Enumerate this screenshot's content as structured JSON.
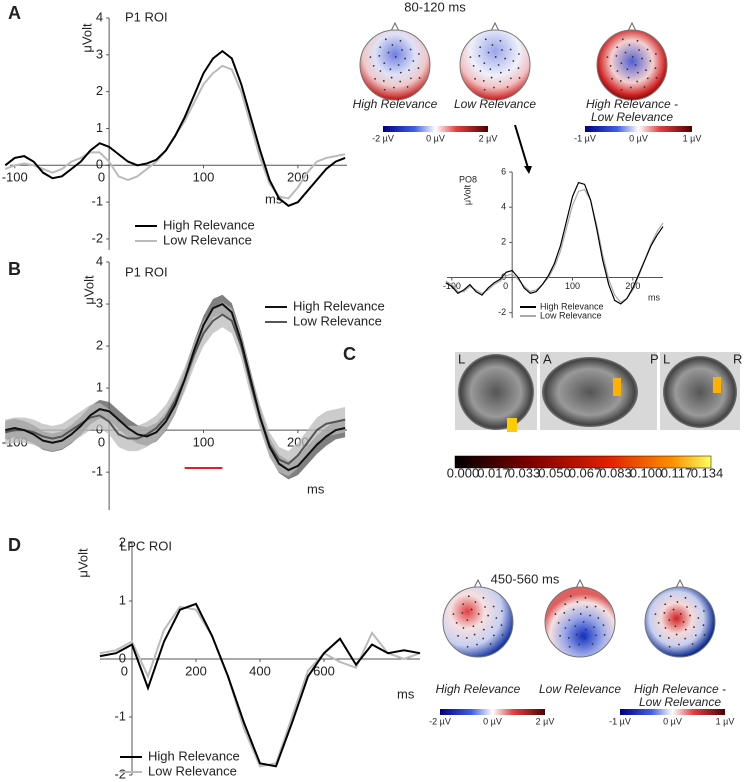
{
  "chart_data": [
    {
      "type": "line",
      "panel": "A",
      "title": "P1 ROI",
      "ylabel": "μVolt",
      "xlabel": "ms",
      "xlim": [
        -105,
        252
      ],
      "ylim": [
        -2.3,
        4
      ],
      "xticks": [
        -100,
        0,
        100,
        200
      ],
      "yticks": [
        -2,
        -1,
        0,
        1,
        2,
        3,
        4
      ],
      "x": [
        -110,
        -100,
        -90,
        -80,
        -70,
        -60,
        -50,
        -40,
        -30,
        -20,
        -10,
        0,
        10,
        20,
        30,
        40,
        50,
        60,
        70,
        80,
        90,
        100,
        110,
        120,
        130,
        140,
        150,
        160,
        170,
        180,
        190,
        200,
        210,
        220,
        230,
        240,
        250
      ],
      "series": [
        {
          "name": "High Relevance",
          "color": "#000000",
          "values": [
            0,
            0.2,
            0.25,
            0.1,
            -0.2,
            -0.35,
            -0.3,
            -0.1,
            0.1,
            0.4,
            0.6,
            0.5,
            0.3,
            0.1,
            0,
            0.05,
            0.15,
            0.4,
            0.8,
            1.3,
            1.9,
            2.5,
            2.9,
            3.1,
            2.9,
            2.2,
            1.3,
            0.4,
            -0.4,
            -0.9,
            -1.1,
            -1,
            -0.7,
            -0.4,
            -0.1,
            0.1,
            0.2
          ]
        },
        {
          "name": "Low Relevance",
          "color": "#bbbbbb",
          "values": [
            -0.1,
            0,
            0.05,
            0,
            -0.1,
            -0.2,
            -0.1,
            0.1,
            0.2,
            0.35,
            0.35,
            0.1,
            -0.3,
            -0.4,
            -0.3,
            -0.1,
            0.1,
            0.4,
            0.8,
            1.2,
            1.7,
            2.2,
            2.5,
            2.7,
            2.6,
            2,
            1.1,
            0.2,
            -0.5,
            -0.85,
            -0.9,
            -0.6,
            -0.2,
            0.1,
            0.2,
            0.25,
            0.3
          ]
        }
      ]
    },
    {
      "type": "band",
      "panel": "B",
      "title": "P1 ROI",
      "ylabel": "μVolt",
      "xlabel": "ms",
      "xlim": [
        -105,
        252
      ],
      "ylim": [
        -1.9,
        4
      ],
      "xticks": [
        -100,
        0,
        100,
        200
      ],
      "yticks": [
        -1,
        0,
        1,
        2,
        3,
        4
      ],
      "highlight": {
        "range": [
          80,
          120
        ],
        "color": "#e02020"
      },
      "x": [
        -110,
        -100,
        -90,
        -80,
        -70,
        -60,
        -50,
        -40,
        -30,
        -20,
        -10,
        0,
        10,
        20,
        30,
        40,
        50,
        60,
        70,
        80,
        90,
        100,
        110,
        120,
        130,
        140,
        150,
        160,
        170,
        180,
        190,
        200,
        210,
        220,
        230,
        240,
        250
      ],
      "series": [
        {
          "name": "High Relevance",
          "color": "#111111",
          "band_color": "#555555",
          "sem": 0.22,
          "values": [
            0,
            0.05,
            0,
            -0.1,
            -0.25,
            -0.3,
            -0.25,
            -0.1,
            0.1,
            0.35,
            0.5,
            0.45,
            0.25,
            0.05,
            -0.1,
            -0.15,
            -0.05,
            0.2,
            0.6,
            1.2,
            1.9,
            2.5,
            2.9,
            3,
            2.8,
            2.1,
            1.2,
            0.3,
            -0.4,
            -0.8,
            -0.95,
            -0.85,
            -0.6,
            -0.35,
            -0.15,
            0,
            0.05
          ]
        },
        {
          "name": "Low Relevance",
          "color": "#555555",
          "band_color": "#bbbbbb",
          "sem": 0.3,
          "values": [
            -0.05,
            0,
            0,
            -0.05,
            -0.15,
            -0.2,
            -0.15,
            0,
            0.15,
            0.3,
            0.35,
            0.2,
            -0.1,
            -0.2,
            -0.2,
            -0.1,
            0.05,
            0.3,
            0.7,
            1.2,
            1.8,
            2.3,
            2.6,
            2.75,
            2.6,
            2,
            1.1,
            0.3,
            -0.35,
            -0.7,
            -0.8,
            -0.6,
            -0.3,
            0,
            0.15,
            0.2,
            0.25
          ]
        }
      ]
    },
    {
      "type": "line",
      "title": "PO8",
      "ylabel": "μVolt",
      "xlabel": "ms",
      "xlim": [
        -108,
        250
      ],
      "ylim": [
        -2.3,
        6
      ],
      "xticks": [
        -100,
        0,
        100,
        200
      ],
      "yticks": [
        -2,
        0,
        2,
        4,
        6
      ],
      "x": [
        -110,
        -100,
        -90,
        -80,
        -70,
        -60,
        -50,
        -40,
        -30,
        -20,
        -10,
        0,
        10,
        20,
        30,
        40,
        50,
        60,
        70,
        80,
        90,
        100,
        110,
        120,
        130,
        140,
        150,
        160,
        170,
        180,
        190,
        200,
        210,
        220,
        230,
        240,
        250
      ],
      "series": [
        {
          "name": "High Relevance",
          "color": "#000000",
          "values": [
            -0.3,
            -0.5,
            -0.9,
            -0.7,
            -0.4,
            -0.8,
            -1,
            -0.6,
            -0.3,
            -0.1,
            0.3,
            0.4,
            0,
            -0.6,
            -0.9,
            -0.8,
            -0.4,
            0.1,
            0.8,
            1.8,
            3.2,
            4.6,
            5.4,
            5.3,
            4.4,
            2.8,
            1,
            -0.4,
            -1.3,
            -1.5,
            -1.2,
            -0.6,
            0.2,
            1,
            1.8,
            2.4,
            2.9
          ]
        },
        {
          "name": "Low Relevance",
          "color": "#aaaaaa",
          "values": [
            -0.2,
            -0.4,
            -0.8,
            -0.8,
            -0.5,
            -0.7,
            -0.9,
            -0.7,
            -0.4,
            -0.2,
            0.1,
            0.2,
            -0.1,
            -0.5,
            -0.8,
            -0.7,
            -0.4,
            0,
            0.6,
            1.5,
            2.8,
            4.1,
            4.9,
            5,
            4.4,
            3,
            1.3,
            -0.1,
            -1,
            -1.4,
            -1.2,
            -0.7,
            0.1,
            1,
            1.9,
            2.6,
            3.1
          ]
        }
      ]
    },
    {
      "type": "line",
      "panel": "D",
      "title": "LPC ROI",
      "ylabel": "μVolt",
      "xlabel": "ms",
      "xlim": [
        -100,
        900
      ],
      "ylim": [
        -2,
        2
      ],
      "xticks": [
        0,
        200,
        400,
        600
      ],
      "yticks": [
        -2,
        -1,
        0,
        1,
        2
      ],
      "x": [
        -100,
        -50,
        0,
        50,
        100,
        150,
        200,
        250,
        300,
        350,
        400,
        450,
        500,
        550,
        600,
        650,
        700,
        750,
        800,
        850,
        900
      ],
      "series": [
        {
          "name": "High Relevance",
          "color": "#000000",
          "values": [
            0.05,
            0.1,
            0.25,
            -0.5,
            0.3,
            0.85,
            0.95,
            0.4,
            -0.3,
            -1.1,
            -1.8,
            -1.85,
            -1.1,
            -0.3,
            0.1,
            0.35,
            -0.1,
            0.25,
            0.1,
            0.15,
            0.1
          ]
        },
        {
          "name": "Low Relevance",
          "color": "#bbbbbb",
          "values": [
            0.1,
            0.15,
            0.3,
            -0.3,
            0.5,
            0.9,
            0.85,
            0.4,
            -0.3,
            -1.2,
            -1.85,
            -1.8,
            -1,
            -0.2,
            0.1,
            -0.05,
            -0.15,
            0.45,
            0.1,
            0,
            0.1
          ]
        }
      ]
    }
  ],
  "topomaps": [
    {
      "time": "80-120 ms",
      "maps": [
        "High Relevance",
        "Low Relevance",
        [
          "High Relevance -",
          "Low Relevance"
        ]
      ],
      "colorbars": [
        [
          "-2 µV",
          "0 µV",
          "2 µV"
        ],
        [
          "-1 µV",
          "0 µV",
          "1 µV"
        ]
      ]
    },
    {
      "time": "450-560 ms",
      "maps": [
        "High Relevance",
        "Low Relevance",
        [
          "High Relevance -",
          "Low Relevance"
        ]
      ],
      "colorbars": [
        [
          "-2 µV",
          "0 µV",
          "2 µV"
        ],
        [
          "-1 µV",
          "0 µV",
          "1 µV"
        ]
      ]
    }
  ],
  "source_panel": {
    "panel": "C",
    "view_labels": [
      [
        "L",
        "R"
      ],
      [
        "A",
        "P"
      ],
      [
        "L",
        "R"
      ]
    ],
    "colorbar": [
      "0.000",
      "0.017",
      "0.033",
      "0.050",
      "0.067",
      "0.083",
      "0.100",
      "0.117",
      "0.134"
    ]
  }
}
